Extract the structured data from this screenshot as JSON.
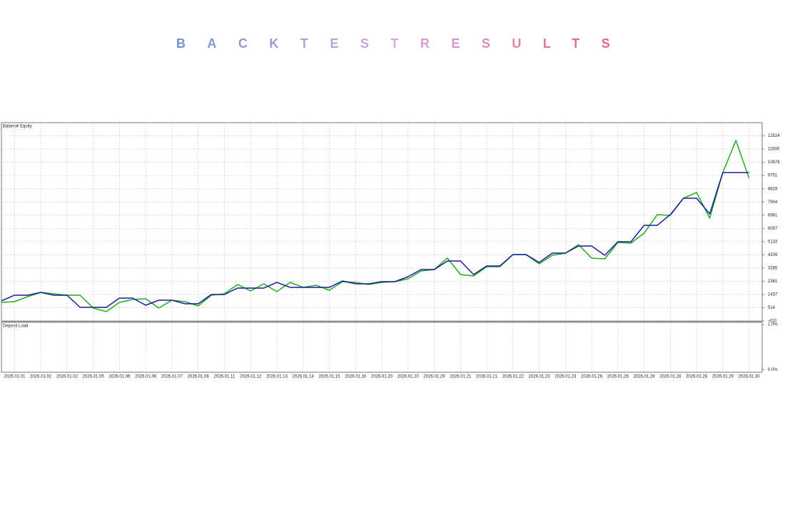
{
  "chart_data": {
    "type": "line",
    "title": "BACKTESTRESULTS",
    "panel_title": "Deposit Load",
    "x": [
      0,
      1,
      2,
      3,
      4,
      5,
      6,
      7,
      8,
      9,
      10,
      11,
      12,
      13,
      14,
      15,
      16,
      17,
      18,
      19,
      20,
      21,
      22,
      23,
      24,
      25,
      26,
      27,
      28,
      29,
      30,
      31,
      32,
      33,
      34,
      35,
      36,
      37,
      38,
      39,
      40,
      41,
      42,
      43,
      44,
      45,
      46,
      47,
      48,
      49,
      50,
      51,
      52,
      53,
      54,
      55,
      56,
      57
    ],
    "series": [
      {
        "name": "Balance",
        "color": "#1c1ca0",
        "values": [
          986,
          1385,
          1385,
          1584,
          1385,
          1385,
          537,
          537,
          537,
          1186,
          1186,
          687,
          1036,
          1036,
          787,
          787,
          1435,
          1435,
          1884,
          1884,
          1884,
          2282,
          1934,
          1934,
          1934,
          1934,
          2382,
          2183,
          2183,
          2332,
          2332,
          2681,
          3180,
          3180,
          3778,
          3778,
          2831,
          3429,
          3429,
          4227,
          4227,
          3679,
          4327,
          4327,
          4825,
          4825,
          4177,
          5124,
          5124,
          6271,
          6271,
          7019,
          8166,
          8166,
          7069,
          9961,
          9961,
          9961
        ]
      },
      {
        "name": "Equity",
        "color": "#1fae1f",
        "values": [
          887,
          936,
          1285,
          1584,
          1485,
          1385,
          1385,
          487,
          238,
          887,
          1086,
          1136,
          487,
          1036,
          936,
          637,
          1385,
          1485,
          2133,
          1684,
          2183,
          1634,
          2282,
          1934,
          2083,
          1734,
          2332,
          2282,
          2133,
          2282,
          2332,
          2532,
          3080,
          3180,
          3978,
          2831,
          2731,
          3379,
          3379,
          4227,
          4227,
          3579,
          4177,
          4327,
          4925,
          3978,
          3928,
          5074,
          5024,
          5722,
          7019,
          6969,
          8166,
          8565,
          6770,
          9961,
          12204,
          9562
        ]
      }
    ],
    "xlim": [
      0,
      58
    ],
    "xticks": [
      {
        "value": 1,
        "label": "2026.01.01"
      },
      {
        "value": 3,
        "label": "2026.01.02"
      },
      {
        "value": 5,
        "label": "2026.01.02"
      },
      {
        "value": 7,
        "label": "2026.01.05"
      },
      {
        "value": 9,
        "label": "2026.01.06"
      },
      {
        "value": 11,
        "label": "2026.01.06"
      },
      {
        "value": 13,
        "label": "2026.01.07"
      },
      {
        "value": 15,
        "label": "2026.01.08"
      },
      {
        "value": 17,
        "label": "2026.01.11"
      },
      {
        "value": 19,
        "label": "2026.01.12"
      },
      {
        "value": 21,
        "label": "2026.01.13"
      },
      {
        "value": 23,
        "label": "2026.01.14"
      },
      {
        "value": 25,
        "label": "2026.01.15"
      },
      {
        "value": 27,
        "label": "2026.01.16"
      },
      {
        "value": 29,
        "label": "2026.01.20"
      },
      {
        "value": 31,
        "label": "2026.01.20"
      },
      {
        "value": 33,
        "label": "2026.01.29"
      },
      {
        "value": 35,
        "label": "2026.01.21"
      },
      {
        "value": 37,
        "label": "2026.01.21"
      },
      {
        "value": 39,
        "label": "2026.01.22"
      },
      {
        "value": 41,
        "label": "2026.01.23"
      },
      {
        "value": 43,
        "label": "2026.01.23"
      },
      {
        "value": 45,
        "label": "2026.01.26"
      },
      {
        "value": 47,
        "label": "2026.01.26"
      },
      {
        "value": 49,
        "label": "2026.01.28"
      },
      {
        "value": 51,
        "label": "2026.01.28"
      },
      {
        "value": 53,
        "label": "2026.01.28"
      },
      {
        "value": 55,
        "label": "2026.01.29"
      },
      {
        "value": 57,
        "label": "2026.01.30"
      }
    ],
    "ylim": [
      -410,
      13448
    ],
    "yticks": [
      -410,
      514,
      1437,
      2361,
      3285,
      4209,
      5133,
      6057,
      6981,
      7904,
      8828,
      9751,
      10676,
      11600,
      12524
    ],
    "panel_ylim": [
      -0.06,
      1.05
    ],
    "panel_yticks": [
      {
        "value": 0,
        "label": "0.0%"
      },
      {
        "value": 1,
        "label": "1.0%"
      }
    ],
    "grid": true
  }
}
